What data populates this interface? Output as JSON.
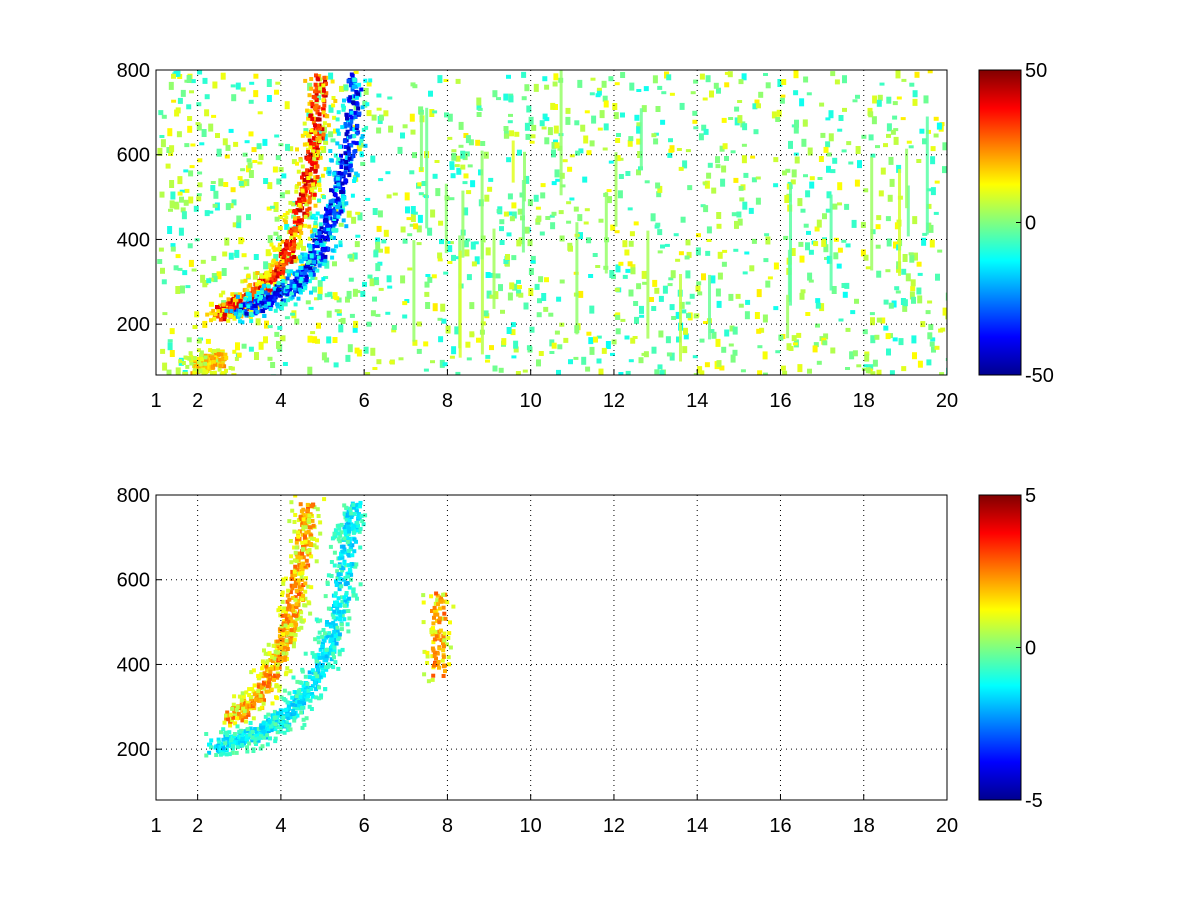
{
  "chart_data": [
    {
      "type": "heatmap",
      "title": "",
      "xlabel": "",
      "ylabel": "",
      "xlim": [
        1,
        20
      ],
      "ylim": [
        80,
        800
      ],
      "xticks": [
        1,
        2,
        4,
        6,
        8,
        10,
        12,
        14,
        16,
        18,
        20
      ],
      "xtick_labels": [
        "1",
        "2",
        "4",
        "6",
        "8",
        "10",
        "12",
        "14",
        "16",
        "18",
        "20"
      ],
      "yticks": [
        200,
        400,
        600,
        800
      ],
      "ytick_labels": [
        "200",
        "400",
        "600",
        "800"
      ],
      "grid": true,
      "colormap": "jet",
      "colorbar": {
        "min": -50,
        "max": 50,
        "ticks": [
          -50,
          0,
          50
        ],
        "tick_labels": [
          "-50",
          "0",
          "50"
        ]
      },
      "features": [
        {
          "desc": "positive ridge",
          "value": 45,
          "points": [
            [
              2.5,
              230
            ],
            [
              3.0,
              255
            ],
            [
              3.5,
              290
            ],
            [
              4.0,
              340
            ],
            [
              4.3,
              420
            ],
            [
              4.6,
              520
            ],
            [
              4.8,
              640
            ],
            [
              4.9,
              780
            ]
          ]
        },
        {
          "desc": "negative ridge",
          "value": -45,
          "points": [
            [
              3.0,
              235
            ],
            [
              3.6,
              260
            ],
            [
              4.2,
              290
            ],
            [
              4.7,
              340
            ],
            [
              5.0,
              410
            ],
            [
              5.3,
              500
            ],
            [
              5.6,
              620
            ],
            [
              5.75,
              780
            ]
          ]
        },
        {
          "desc": "low-frequency blob",
          "value": 25,
          "points": [
            [
              1.9,
              100
            ],
            [
              2.2,
              115
            ],
            [
              2.5,
              120
            ]
          ]
        }
      ],
      "background": "sparse noise in [-15, 15]"
    },
    {
      "type": "heatmap",
      "title": "",
      "xlabel": "",
      "ylabel": "",
      "xlim": [
        1,
        20
      ],
      "ylim": [
        80,
        800
      ],
      "xticks": [
        1,
        2,
        4,
        6,
        8,
        10,
        12,
        14,
        16,
        18,
        20
      ],
      "xtick_labels": [
        "1",
        "2",
        "4",
        "6",
        "8",
        "10",
        "12",
        "14",
        "16",
        "18",
        "20"
      ],
      "yticks": [
        200,
        400,
        600,
        800
      ],
      "ytick_labels": [
        "200",
        "400",
        "600",
        "800"
      ],
      "grid": true,
      "colormap": "jet",
      "colorbar": {
        "min": -5,
        "max": 5,
        "ticks": [
          -5,
          0,
          5
        ],
        "tick_labels": [
          "-5",
          "0",
          "5"
        ]
      },
      "features": [
        {
          "desc": "positive ridge",
          "value": 3,
          "points": [
            [
              2.8,
              280
            ],
            [
              3.4,
              320
            ],
            [
              3.8,
              400
            ],
            [
              4.1,
              480
            ],
            [
              4.3,
              560
            ],
            [
              4.5,
              680
            ],
            [
              4.6,
              780
            ]
          ]
        },
        {
          "desc": "negative ridge",
          "value": -2,
          "points": [
            [
              2.4,
              210
            ],
            [
              3.0,
              225
            ],
            [
              3.6,
              250
            ],
            [
              4.2,
              290
            ],
            [
              4.7,
              360
            ],
            [
              5.1,
              450
            ],
            [
              5.4,
              560
            ],
            [
              5.6,
              700
            ],
            [
              5.7,
              780
            ]
          ]
        },
        {
          "desc": "isolated column",
          "value": 3,
          "points": [
            [
              7.75,
              390
            ],
            [
              7.75,
              560
            ]
          ]
        }
      ],
      "background": "blank"
    }
  ]
}
